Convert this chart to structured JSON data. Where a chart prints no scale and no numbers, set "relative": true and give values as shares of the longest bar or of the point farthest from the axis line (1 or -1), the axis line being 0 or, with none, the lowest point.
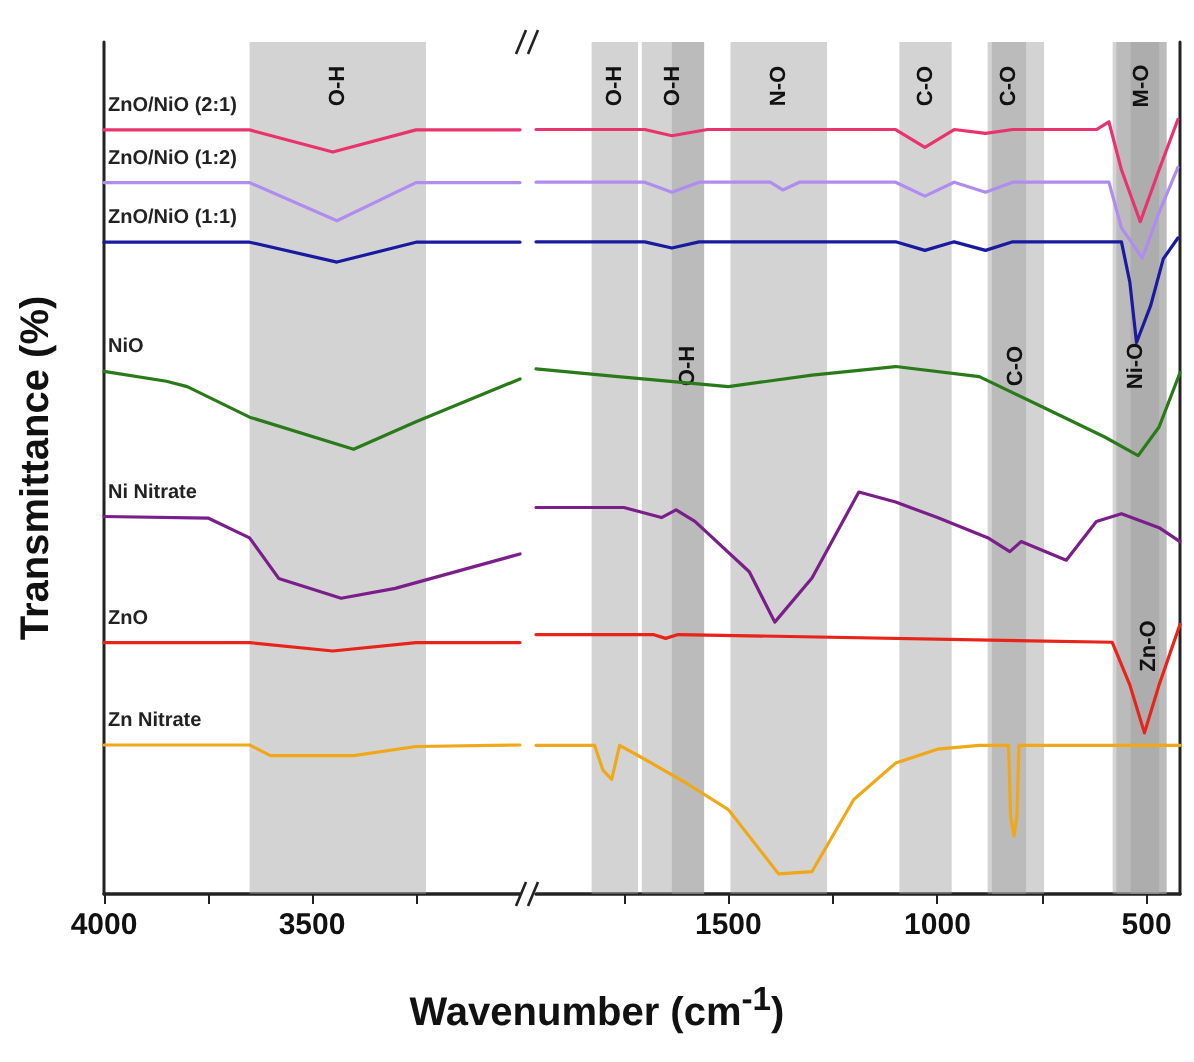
{
  "chart_data": [
    {
      "type": "line",
      "relative": true,
      "marker": "none",
      "xlabel": "Wavenumber (cm$^{-1}$)",
      "ylabel": "Transmittance (%)",
      "xlim": [
        4000,
        3000
      ],
      "xticks": [
        4000,
        {
          "value": 3750,
          "label": null
        },
        3500,
        {
          "value": 3250,
          "label": null
        }
      ],
      "bands": [
        {
          "axis": "x",
          "from": 3650,
          "to": 3226,
          "color": "#9e9e9e",
          "label": "O-H"
        }
      ],
      "series": [
        {
          "name": "ZnO/NiO (2:1)",
          "color": "#e8336e",
          "x": [
            4000,
            3650,
            3450,
            3250,
            3000
          ],
          "values": [
            1,
            1,
            0.971,
            1,
            1
          ]
        },
        {
          "name": "ZnO/NiO (1:2)",
          "color": "#b18cf0",
          "x": [
            4000,
            3650,
            3440,
            3250,
            3000
          ],
          "values": [
            0.931,
            0.931,
            0.881,
            0.931,
            0.931
          ]
        },
        {
          "name": "ZnO/NiO (1:1)",
          "color": "#1a1aa0",
          "x": [
            4000,
            3650,
            3440,
            3250,
            3000
          ],
          "values": [
            0.853,
            0.853,
            0.827,
            0.853,
            0.853
          ]
        },
        {
          "name": "NiO",
          "color": "#2a7a1a",
          "x": [
            4000,
            3850,
            3800,
            3650,
            3400,
            3250,
            3000
          ],
          "values": [
            0.684,
            0.671,
            0.664,
            0.624,
            0.582,
            0.618,
            0.674
          ]
        },
        {
          "name": "Ni Nitrate",
          "color": "#7a1f8a",
          "x": [
            4000,
            3750,
            3650,
            3580,
            3430,
            3300,
            3000
          ],
          "values": [
            0.494,
            0.492,
            0.466,
            0.413,
            0.387,
            0.4,
            0.445
          ]
        },
        {
          "name": "ZnO",
          "color": "#e8231a",
          "x": [
            4000,
            3650,
            3450,
            3250,
            3000
          ],
          "values": [
            0.329,
            0.329,
            0.318,
            0.329,
            0.329
          ]
        },
        {
          "name": "Zn Nitrate",
          "color": "#f0a818",
          "x": [
            4000,
            3650,
            3600,
            3400,
            3250,
            3000
          ],
          "values": [
            0.195,
            0.195,
            0.181,
            0.181,
            0.193,
            0.195
          ]
        }
      ]
    },
    {
      "type": "line",
      "relative": true,
      "marker": "none",
      "xlim": [
        1960,
        420
      ],
      "xticks": [
        {
          "value": 1750,
          "label": null
        },
        1500,
        {
          "value": 1250,
          "label": null
        },
        1000,
        {
          "value": 750,
          "label": null
        },
        500
      ],
      "bands": [
        {
          "axis": "x",
          "from": 1707,
          "to": 1558,
          "color": "#9e9e9e",
          "label": "O-H"
        },
        {
          "axis": "x",
          "from": 1091,
          "to": 966,
          "color": "#9e9e9e",
          "label": "C-O"
        },
        {
          "axis": "x",
          "from": 572,
          "to": 452,
          "color": "#9e9e9e",
          "label": "M-O"
        },
        {
          "axis": "x",
          "from": 581,
          "to": 470,
          "color": "#9e9e9e",
          "label": "Ni-O"
        },
        {
          "axis": "x",
          "from": 1635,
          "to": 1558,
          "color": "#9e9e9e",
          "label": "O-H"
        },
        {
          "axis": "x",
          "from": 1495,
          "to": 1264,
          "color": "#9e9e9e",
          "label": "N-O"
        },
        {
          "axis": "x",
          "from": 870,
          "to": 788,
          "color": "#9e9e9e",
          "label": "C-O"
        },
        {
          "axis": "x",
          "from": 538,
          "to": 452,
          "color": "#9e9e9e",
          "label": "Zn-O"
        },
        {
          "axis": "x",
          "from": 1827,
          "to": 1716,
          "color": "#9e9e9e",
          "label": "O-H"
        },
        {
          "axis": "x",
          "from": 880,
          "to": 745,
          "color": "#9e9e9e",
          "label": "C-O"
        }
      ],
      "series": [
        {
          "color": "#e8336e",
          "x": [
            1960,
            1700,
            1635,
            1550,
            1100,
            1030,
            960,
            885,
            820,
            620,
            590,
            560,
            515,
            470,
            425
          ],
          "values": [
            0.987,
            0.987,
            0.979,
            0.987,
            0.987,
            0.964,
            0.987,
            0.982,
            0.987,
            0.987,
            0.997,
            0.935,
            0.868,
            0.935,
            1.0
          ]
        },
        {
          "color": "#b18cf0",
          "x": [
            1960,
            1700,
            1635,
            1570,
            1400,
            1370,
            1330,
            1100,
            1030,
            960,
            885,
            820,
            590,
            560,
            510,
            470,
            425
          ],
          "values": [
            0.919,
            0.919,
            0.906,
            0.919,
            0.919,
            0.909,
            0.919,
            0.919,
            0.901,
            0.919,
            0.906,
            0.919,
            0.919,
            0.86,
            0.821,
            0.88,
            0.938
          ]
        },
        {
          "color": "#1a1aa0",
          "x": [
            1960,
            1700,
            1635,
            1570,
            1100,
            1030,
            960,
            885,
            820,
            560,
            540,
            524,
            490,
            460,
            425
          ],
          "values": [
            0.842,
            0.842,
            0.834,
            0.842,
            0.842,
            0.831,
            0.842,
            0.831,
            0.842,
            0.842,
            0.79,
            0.712,
            0.76,
            0.82,
            0.847
          ]
        },
        {
          "color": "#2a7a1a",
          "x": [
            1960,
            1764,
            1500,
            1300,
            1100,
            900,
            750,
            600,
            520,
            470,
            420
          ],
          "values": [
            0.678,
            0.668,
            0.655,
            0.67,
            0.681,
            0.668,
            0.629,
            0.59,
            0.566,
            0.603,
            0.673
          ]
        },
        {
          "color": "#7a1f8a",
          "x": [
            1960,
            1750,
            1660,
            1625,
            1580,
            1450,
            1389,
            1300,
            1188,
            1100,
            1000,
            880,
            827,
            800,
            692,
            620,
            560,
            470,
            420
          ],
          "values": [
            0.499,
            0.499,
            0.486,
            0.496,
            0.481,
            0.416,
            0.351,
            0.408,
            0.519,
            0.506,
            0.486,
            0.46,
            0.442,
            0.455,
            0.431,
            0.481,
            0.491,
            0.473,
            0.455
          ]
        },
        {
          "color": "#e8231a",
          "x": [
            1960,
            1680,
            1650,
            1620,
            582,
            540,
            505,
            470,
            420
          ],
          "values": [
            0.335,
            0.335,
            0.33,
            0.335,
            0.325,
            0.27,
            0.208,
            0.27,
            0.348
          ]
        },
        {
          "color": "#f0a818",
          "x": [
            1960,
            1820,
            1800,
            1779,
            1760,
            1700,
            1600,
            1500,
            1380,
            1300,
            1200,
            1100,
            1000,
            900,
            830,
            825,
            817,
            810,
            805,
            420
          ],
          "values": [
            0.192,
            0.192,
            0.16,
            0.148,
            0.192,
            0.174,
            0.143,
            0.109,
            0.026,
            0.029,
            0.122,
            0.169,
            0.187,
            0.192,
            0.192,
            0.1,
            0.075,
            0.1,
            0.192,
            0.192
          ]
        }
      ]
    }
  ]
}
